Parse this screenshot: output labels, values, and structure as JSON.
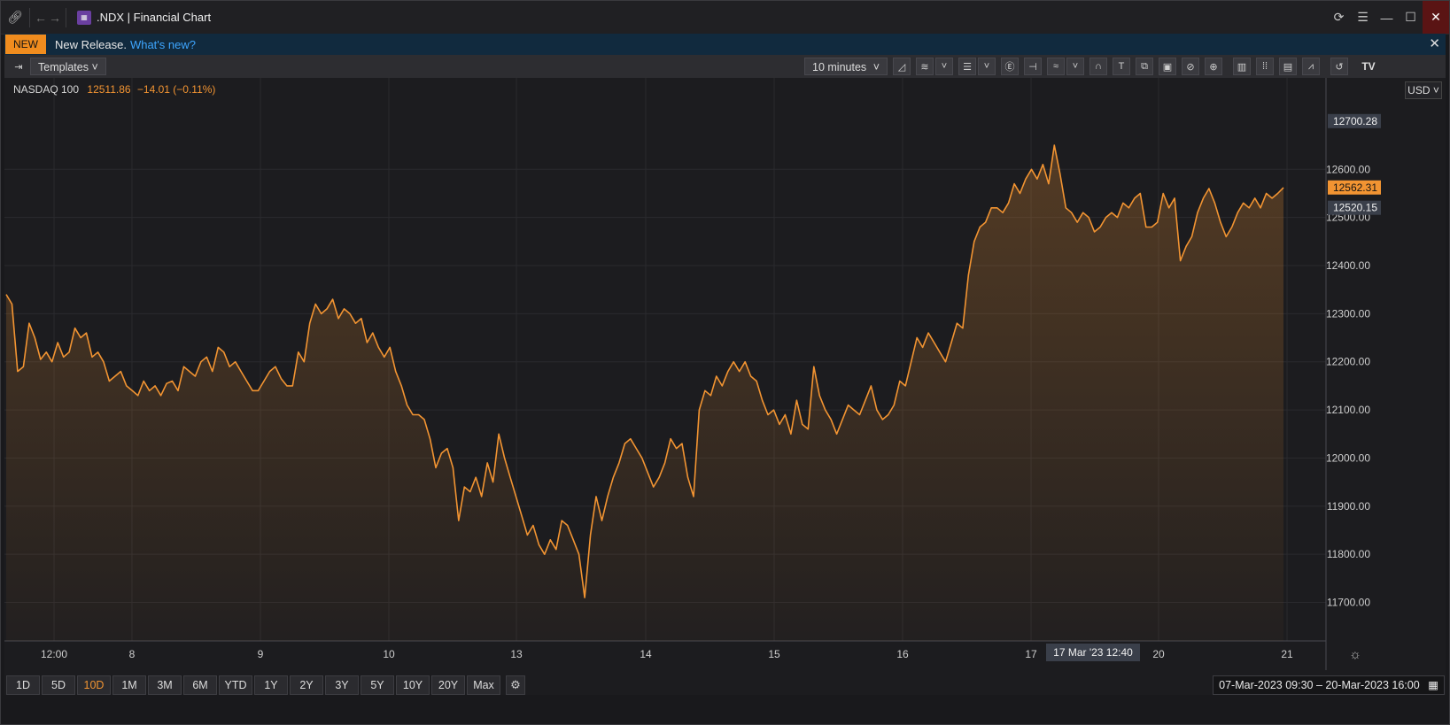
{
  "window": {
    "title": ".NDX | Financial Chart",
    "app_icon": "chart-grid-icon"
  },
  "notification": {
    "badge": "NEW",
    "text": "New Release.",
    "link": "What's new?"
  },
  "toolbar": {
    "templates_label": "Templates ˅",
    "interval_label": "10 minutes"
  },
  "legend": {
    "name": "NASDAQ 100",
    "value": "12511.86",
    "change": "−14.01 (−0.11%)"
  },
  "currency": "USD ˅",
  "price_labels": {
    "top_marker": "12700.28",
    "last_marker": "12562.31",
    "prev_marker": "12520.15"
  },
  "crosshair_label": "17 Mar '23    12:40",
  "colors": {
    "series": "#f29432",
    "background": "#1c1c1f",
    "accent_badge": "#f08c1e",
    "link": "#3ea6ff"
  },
  "range_buttons": [
    "1D",
    "5D",
    "10D",
    "1M",
    "3M",
    "6M",
    "YTD",
    "1Y",
    "2Y",
    "3Y",
    "5Y",
    "10Y",
    "20Y",
    "Max"
  ],
  "range_active": "10D",
  "date_range": "07-Mar-2023 09:30 – 20-Mar-2023 16:00",
  "chart_data": {
    "type": "area",
    "title": "",
    "xlabel": "",
    "ylabel": "",
    "ylim": [
      11620,
      12790
    ],
    "y_ticks": [
      "12600.00",
      "12500.00",
      "12400.00",
      "12300.00",
      "12200.00",
      "12100.00",
      "12000.00",
      "11900.00",
      "11800.00",
      "11700.00"
    ],
    "x_ticks": [
      "12:00",
      "8",
      "9",
      "10",
      "13",
      "14",
      "15",
      "16",
      "17",
      "20",
      "21"
    ],
    "series": [
      {
        "values": [
          12340,
          12320,
          12180,
          12190,
          12280,
          12250,
          12205,
          12220,
          12200,
          12240,
          12210,
          12220,
          12270,
          12250,
          12260,
          12210,
          12220,
          12200,
          12160,
          12170,
          12180,
          12150,
          12140,
          12130,
          12160,
          12140,
          12150,
          12130,
          12155,
          12160,
          12140,
          12190,
          12180,
          12170,
          12200,
          12210,
          12180,
          12230,
          12220,
          12190,
          12200,
          12180,
          12160,
          12140,
          12140,
          12160,
          12180,
          12190,
          12165,
          12150,
          12150,
          12220,
          12200,
          12280,
          12320,
          12300,
          12310,
          12330,
          12290,
          12310,
          12300,
          12280,
          12290,
          12240,
          12260,
          12230,
          12210,
          12230,
          12180,
          12150,
          12110,
          12090,
          12090,
          12080,
          12040,
          11980,
          12010,
          12020,
          11980,
          11870,
          11940,
          11930,
          11960,
          11920,
          11990,
          11950,
          12050,
          12000,
          11960,
          11920,
          11880,
          11840,
          11860,
          11820,
          11800,
          11830,
          11810,
          11870,
          11860,
          11830,
          11800,
          11710,
          11840,
          11920,
          11870,
          11920,
          11960,
          11990,
          12030,
          12040,
          12020,
          12000,
          11970,
          11940,
          11960,
          11990,
          12040,
          12020,
          12030,
          11960,
          11920,
          12100,
          12140,
          12130,
          12170,
          12150,
          12180,
          12200,
          12180,
          12200,
          12170,
          12160,
          12120,
          12090,
          12100,
          12070,
          12090,
          12050,
          12120,
          12070,
          12060,
          12190,
          12130,
          12100,
          12080,
          12050,
          12080,
          12110,
          12100,
          12090,
          12120,
          12150,
          12100,
          12080,
          12090,
          12110,
          12160,
          12150,
          12200,
          12250,
          12230,
          12260,
          12240,
          12220,
          12200,
          12240,
          12280,
          12270,
          12380,
          12450,
          12480,
          12490,
          12520,
          12520,
          12510,
          12530,
          12570,
          12550,
          12580,
          12600,
          12580,
          12610,
          12570,
          12650,
          12590,
          12520,
          12510,
          12490,
          12510,
          12500,
          12470,
          12480,
          12500,
          12510,
          12500,
          12530,
          12520,
          12540,
          12550,
          12480,
          12480,
          12490,
          12550,
          12520,
          12540,
          12410,
          12440,
          12460,
          12510,
          12540,
          12560,
          12530,
          12490,
          12460,
          12480,
          12510,
          12530,
          12520,
          12540,
          12520,
          12550,
          12540,
          12550,
          12562
        ]
      }
    ]
  }
}
